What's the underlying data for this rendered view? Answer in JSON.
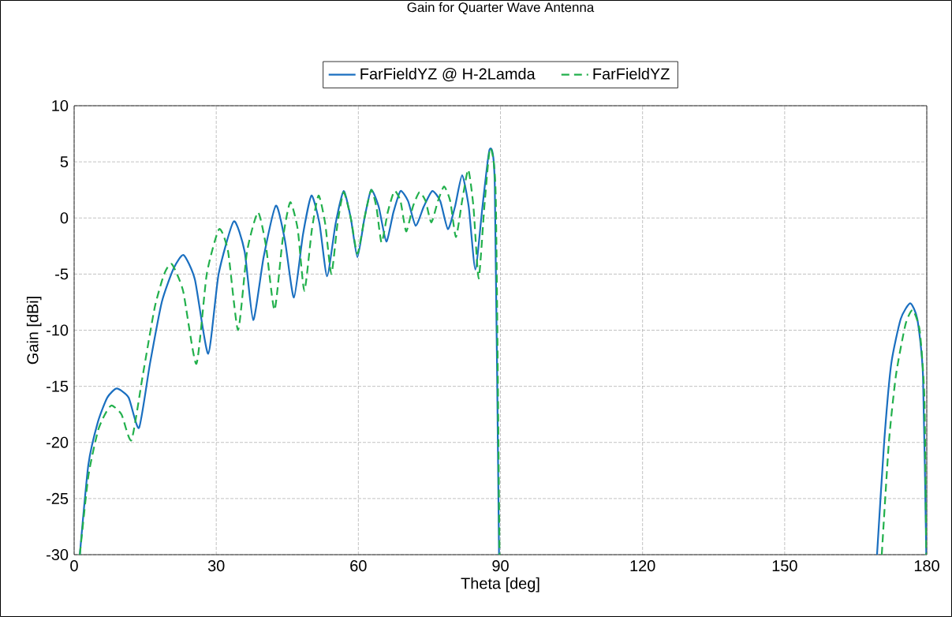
{
  "chart_data": {
    "type": "line",
    "title": "Gain for Quarter Wave Antenna",
    "xlabel": "Theta [deg]",
    "ylabel": "Gain [dBi]",
    "xlim": [
      0,
      180
    ],
    "xticks": [
      0,
      30,
      60,
      90,
      120,
      150,
      180
    ],
    "ylim": [
      -30,
      10
    ],
    "yticks": [
      -30,
      -25,
      -20,
      -15,
      -10,
      -5,
      0,
      5,
      10
    ],
    "grid": true,
    "legend": "top",
    "series": [
      {
        "name": "FarFieldYZ @ H-2Lamda",
        "color": "#1a6fc0",
        "line_style": "solid",
        "x": [
          1.2,
          3,
          5,
          7,
          9,
          11.5,
          13.7,
          16,
          18.5,
          21,
          23.1,
          25.5,
          28.3,
          30.5,
          33.7,
          36,
          37.8,
          40,
          42.6,
          44.5,
          46.4,
          48.3,
          50.1,
          51.8,
          53.4,
          55.2,
          56.9,
          58.4,
          59.8,
          61.3,
          62.7,
          64.3,
          65.9,
          67.4,
          68.9,
          70.5,
          72.1,
          73.8,
          75.6,
          77.3,
          78.9,
          80.4,
          81.9,
          83.3,
          84.7,
          86.2,
          87.7,
          88.8,
          89.7,
          130,
          169.5,
          171,
          172.5,
          174.5,
          176.5,
          178,
          179.2,
          179.9
        ],
        "values": [
          -30,
          -22,
          -18.2,
          -16,
          -15.2,
          -16,
          -18.7,
          -13,
          -7.5,
          -4.5,
          -3.3,
          -5.5,
          -12.1,
          -5,
          -0.3,
          -3,
          -9.1,
          -3.5,
          1.1,
          -2,
          -7.1,
          -1.5,
          2.0,
          -0.5,
          -5.2,
          -0.5,
          2.4,
          0,
          -3.5,
          0,
          2.5,
          1,
          -2.1,
          0.5,
          2.4,
          1.5,
          -0.7,
          1,
          2.4,
          1.5,
          -1.0,
          1,
          3.8,
          1,
          -4.6,
          1,
          6.1,
          3,
          -30,
          null,
          -30,
          -20,
          -13,
          -9,
          -7.6,
          -9,
          -14,
          -30
        ]
      },
      {
        "name": "FarFieldYZ",
        "color": "#22b04c",
        "line_style": "dashed",
        "x": [
          1.2,
          3,
          5,
          6.5,
          7.9,
          10,
          12.1,
          14.5,
          17,
          19,
          20.6,
          23,
          25.8,
          28,
          30.6,
          32.5,
          34.6,
          36.5,
          38.8,
          40.5,
          42.3,
          44,
          45.6,
          47.2,
          48.6,
          50.2,
          51.6,
          53,
          54.3,
          55.6,
          56.9,
          58.4,
          59.8,
          61.3,
          62.7,
          63.8,
          64.9,
          66.2,
          67.6,
          68.9,
          70.1,
          71.5,
          72.9,
          74.2,
          75.4,
          76.8,
          78.1,
          79.4,
          80.6,
          81.9,
          83.2,
          84.3,
          85.4,
          86.6,
          87.8,
          89,
          89.8,
          130,
          170.5,
          172,
          173.5,
          175.5,
          177,
          178.5,
          179.5,
          179.9
        ],
        "values": [
          -30,
          -23,
          -19,
          -17.5,
          -16.7,
          -17.5,
          -19.8,
          -14,
          -8,
          -5,
          -4.1,
          -6.5,
          -13.0,
          -5,
          -1.0,
          -3,
          -10.0,
          -3,
          0.5,
          -2.5,
          -8.2,
          -2,
          1.4,
          -1,
          -6.5,
          -1,
          2.0,
          -0.5,
          -5.0,
          -0.5,
          2.3,
          0,
          -3.2,
          0,
          2.5,
          1,
          -2.2,
          0.5,
          2.4,
          1.5,
          -1.2,
          1,
          2.3,
          1.5,
          -0.4,
          1.5,
          2.8,
          1.5,
          -1.7,
          1.5,
          4.3,
          1,
          -5.4,
          1,
          6.2,
          2,
          -30,
          null,
          -30,
          -20,
          -14,
          -9.5,
          -8.2,
          -10,
          -16,
          -30
        ]
      }
    ]
  }
}
